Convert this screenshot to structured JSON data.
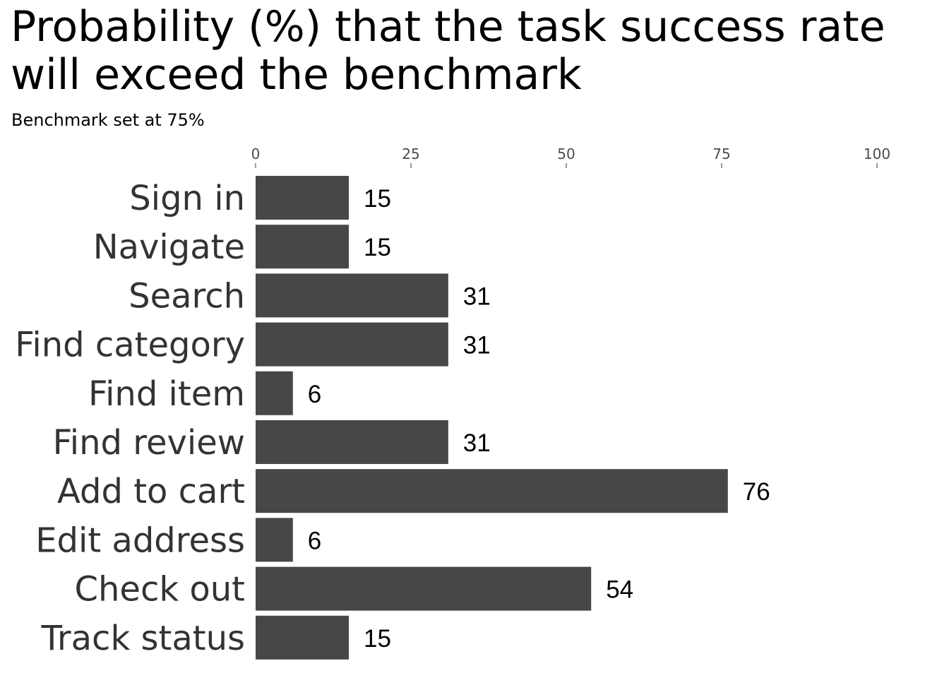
{
  "chart_data": {
    "type": "bar",
    "orientation": "horizontal",
    "title": "Probability (%) that the task success rate will exceed the benchmark",
    "subtitle": "Benchmark set at 75%",
    "xlabel": "",
    "ylabel": "",
    "xlim": [
      0,
      100
    ],
    "x_ticks": [
      0,
      25,
      50,
      75,
      100
    ],
    "x_axis_position": "top",
    "grid": false,
    "bar_color": "#474747",
    "categories": [
      "Sign in",
      "Navigate",
      "Search",
      "Find category",
      "Find item",
      "Find review",
      "Add to cart",
      "Edit address",
      "Check out",
      "Track status"
    ],
    "values": [
      15,
      15,
      31,
      31,
      6,
      31,
      76,
      6,
      54,
      15
    ]
  }
}
